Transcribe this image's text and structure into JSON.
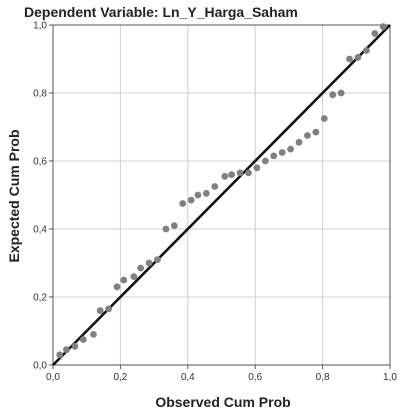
{
  "chart_data": {
    "type": "scatter",
    "title": "Dependent Variable: Ln_Y_Harga_Saham",
    "xlabel": "Observed Cum Prob",
    "ylabel": "Expected Cum Prob",
    "xlim": [
      0,
      1
    ],
    "ylim": [
      0,
      1
    ],
    "x_ticks": [
      "0,0",
      "0,2",
      "0,4",
      "0,6",
      "0,8",
      "1,0"
    ],
    "y_ticks": [
      "0,0",
      "0,2",
      "0,4",
      "0,6",
      "0,8",
      "1,0"
    ],
    "grid": true,
    "reference_line": {
      "from": [
        0,
        0
      ],
      "to": [
        1,
        1
      ]
    },
    "series": [
      {
        "points": [
          [
            0.02,
            0.03
          ],
          [
            0.04,
            0.045
          ],
          [
            0.065,
            0.055
          ],
          [
            0.09,
            0.075
          ],
          [
            0.12,
            0.09
          ],
          [
            0.14,
            0.16
          ],
          [
            0.165,
            0.165
          ],
          [
            0.19,
            0.23
          ],
          [
            0.21,
            0.25
          ],
          [
            0.24,
            0.26
          ],
          [
            0.26,
            0.285
          ],
          [
            0.285,
            0.3
          ],
          [
            0.31,
            0.31
          ],
          [
            0.335,
            0.4
          ],
          [
            0.36,
            0.41
          ],
          [
            0.385,
            0.475
          ],
          [
            0.41,
            0.485
          ],
          [
            0.43,
            0.5
          ],
          [
            0.455,
            0.505
          ],
          [
            0.48,
            0.525
          ],
          [
            0.51,
            0.555
          ],
          [
            0.53,
            0.56
          ],
          [
            0.555,
            0.565
          ],
          [
            0.58,
            0.565
          ],
          [
            0.605,
            0.58
          ],
          [
            0.63,
            0.6
          ],
          [
            0.655,
            0.615
          ],
          [
            0.68,
            0.625
          ],
          [
            0.705,
            0.635
          ],
          [
            0.73,
            0.655
          ],
          [
            0.755,
            0.675
          ],
          [
            0.78,
            0.685
          ],
          [
            0.805,
            0.725
          ],
          [
            0.83,
            0.795
          ],
          [
            0.855,
            0.8
          ],
          [
            0.88,
            0.9
          ],
          [
            0.905,
            0.905
          ],
          [
            0.93,
            0.925
          ],
          [
            0.955,
            0.975
          ],
          [
            0.98,
            0.995
          ]
        ]
      }
    ]
  },
  "colors": {
    "points": "#808080",
    "reference_line": "#111111",
    "grid": "#d0d0d0",
    "frame": "#555555"
  }
}
